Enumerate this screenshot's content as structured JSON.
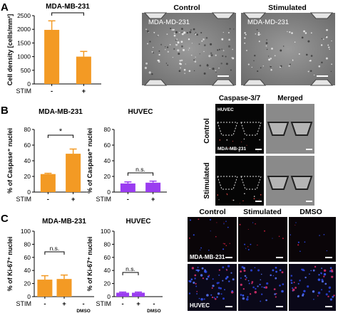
{
  "panels": {
    "a": "A",
    "b": "B",
    "c": "C"
  },
  "colors": {
    "orange": "#f39a24",
    "purple": "#9a3cf0",
    "axis": "#000000"
  },
  "stim_label": "STIM",
  "levels": [
    "-",
    "+"
  ],
  "dmso_label": "DMSO",
  "ns": "n.s.",
  "star": "*",
  "photos_a": {
    "headers": [
      "Control",
      "Stimulated"
    ],
    "overlay": "MDA-MD-231"
  },
  "photos_b": {
    "headers": [
      "Caspase-3/7",
      "Merged"
    ],
    "rows": [
      "Control",
      "Stimulated"
    ],
    "tags": [
      "HUVEC",
      "MDA-MB-231"
    ]
  },
  "photos_c": {
    "headers": [
      "Control",
      "Stimulated",
      "DMSO"
    ],
    "rows": [
      "MDA-MB-231",
      "HUVEC"
    ]
  },
  "chart_data": [
    {
      "type": "bar",
      "panel": "A",
      "title": "MDA-MB-231",
      "ylabel": "Cell density [cells/mm²]",
      "categories": [
        "-",
        "+"
      ],
      "values": [
        1980,
        1000
      ],
      "errors": [
        330,
        190
      ],
      "ylim": [
        0,
        2500
      ],
      "yticks": [
        0,
        500,
        1000,
        1500,
        2000,
        2500
      ],
      "yticklabels": [
        "0",
        "500",
        "1000",
        "1500",
        "2000",
        "2500"
      ],
      "significance": "*",
      "color": "orange"
    },
    {
      "type": "bar",
      "panel": "B",
      "title": "MDA-MB-231",
      "ylabel": "% of Caspase⁺ nuclei",
      "categories": [
        "-",
        "+"
      ],
      "values": [
        23,
        49
      ],
      "errors": [
        1,
        6
      ],
      "ylim": [
        0,
        80
      ],
      "yticks": [
        0,
        20,
        40,
        60,
        80
      ],
      "yticklabels": [
        "0",
        "20",
        "40",
        "60",
        "80"
      ],
      "significance": "*",
      "color": "orange"
    },
    {
      "type": "bar",
      "panel": "B",
      "title": "HUVEC",
      "ylabel": "% of Caspase⁺ nuclei",
      "categories": [
        "-",
        "+"
      ],
      "values": [
        11,
        12
      ],
      "errors": [
        2,
        2
      ],
      "ylim": [
        0,
        80
      ],
      "yticks": [
        0,
        20,
        40,
        60,
        80
      ],
      "yticklabels": [
        "0",
        "20",
        "40",
        "60",
        "80"
      ],
      "significance": "n.s.",
      "color": "purple"
    },
    {
      "type": "bar",
      "panel": "C",
      "title": "MDA-MB-231",
      "ylabel": "% of Ki-67⁺ nuclei",
      "categories": [
        "-",
        "+"
      ],
      "values": [
        26,
        27
      ],
      "errors": [
        6,
        6
      ],
      "ylim": [
        0,
        100
      ],
      "yticks": [
        0,
        20,
        40,
        60,
        80,
        100
      ],
      "yticklabels": [
        "0",
        "20",
        "40",
        "60",
        "80",
        "100"
      ],
      "significance": "n.s.",
      "color": "orange"
    },
    {
      "type": "bar",
      "panel": "C",
      "title": "HUVEC",
      "ylabel": "% of Ki-67⁺ nuclei",
      "categories": [
        "-",
        "+"
      ],
      "values": [
        6,
        6
      ],
      "errors": [
        1,
        1
      ],
      "ylim": [
        0,
        100
      ],
      "yticks": [
        0,
        20,
        40,
        60,
        80,
        100
      ],
      "yticklabels": [
        "0",
        "20",
        "40",
        "60",
        "80",
        "100"
      ],
      "significance": "n.s.",
      "color": "purple"
    }
  ]
}
